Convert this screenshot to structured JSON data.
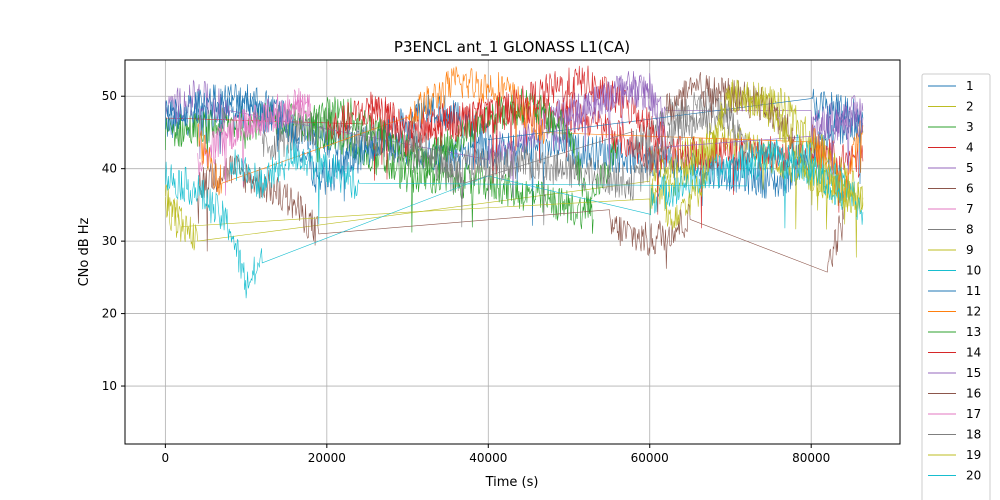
{
  "chart_data": {
    "type": "line",
    "title": "P3ENCL ant_1 GLONASS L1(CA)",
    "xlabel": "Time (s)",
    "ylabel": "CNo dB Hz",
    "xlim": [
      -5000,
      91000
    ],
    "ylim": [
      2,
      55
    ],
    "xticks": [
      0,
      20000,
      40000,
      60000,
      80000
    ],
    "yticks": [
      10,
      20,
      30,
      40,
      50
    ],
    "grid": true,
    "legend": "right-outside",
    "series": [
      {
        "name": "1",
        "color": "#1f77b4",
        "x": [
          0,
          10000,
          20000,
          35000,
          48000,
          62000,
          76000,
          84000,
          86400
        ],
        "y": [
          46,
          48,
          44,
          42,
          43,
          41,
          38,
          46,
          45
        ]
      },
      {
        "name": "2",
        "color": "#bcbd22",
        "x": [
          0,
          2000,
          4000,
          60000,
          70000,
          78000,
          86400
        ],
        "y": [
          36,
          33,
          30,
          40,
          44,
          40,
          35
        ]
      },
      {
        "name": "3",
        "color": "#2ca02c",
        "x": [
          0,
          15000,
          22000,
          30000,
          40000,
          52000,
          56000
        ],
        "y": [
          45,
          47,
          44,
          39,
          38,
          34,
          43
        ]
      },
      {
        "name": "4",
        "color": "#d62728",
        "x": [
          0,
          25000,
          30000,
          45000,
          52000,
          60000,
          70000,
          80000,
          86400
        ],
        "y": [
          47,
          48,
          46,
          48,
          47,
          42,
          42,
          42,
          41
        ]
      },
      {
        "name": "5",
        "color": "#9467bd",
        "x": [
          0,
          4000,
          8000,
          40000,
          50000,
          58000,
          62000,
          80000,
          86400
        ],
        "y": [
          48,
          50,
          48,
          42,
          48,
          51,
          48,
          46,
          48
        ]
      },
      {
        "name": "6",
        "color": "#8c564b",
        "x": [
          4000,
          8000,
          12000,
          16000,
          19000,
          55000,
          60000,
          65000,
          82000,
          84000
        ],
        "y": [
          38,
          40,
          38,
          35,
          31,
          32,
          30,
          33,
          27,
          33
        ]
      },
      {
        "name": "7",
        "color": "#e377c2",
        "x": [
          4000,
          8000,
          12000,
          18000
        ],
        "y": [
          41,
          45,
          47,
          48
        ]
      },
      {
        "name": "8",
        "color": "#7f7f7f",
        "x": [
          12000,
          20000,
          33000,
          37000,
          58000,
          62000,
          68000,
          72000
        ],
        "y": [
          43,
          46,
          41,
          38,
          43,
          47,
          49,
          44
        ]
      },
      {
        "name": "9",
        "color": "#bcbd22",
        "x": [
          0,
          2000,
          30000,
          60000,
          66000,
          70000,
          76000,
          80000,
          86400
        ],
        "y": [
          35,
          32,
          34,
          36,
          41,
          50,
          49,
          44,
          36
        ]
      },
      {
        "name": "10",
        "color": "#17becf",
        "x": [
          0,
          4000,
          8000,
          10000,
          12000,
          40000,
          60000,
          74000,
          80000,
          84000,
          86400
        ],
        "y": [
          39,
          37,
          32,
          24,
          27,
          39,
          36,
          42,
          40,
          38,
          34
        ]
      },
      {
        "name": "11",
        "color": "#1f77b4",
        "x": [
          0,
          5000,
          10000,
          15000,
          19000,
          28000,
          33000,
          40000,
          80000,
          86400
        ],
        "y": [
          47,
          49,
          50,
          47,
          38,
          45,
          49,
          44,
          49,
          47
        ]
      },
      {
        "name": "12",
        "color": "#ff7f0e",
        "x": [
          4000,
          7000,
          30000,
          36000,
          42000,
          47000,
          80000,
          84000,
          86400
        ],
        "y": [
          44,
          38,
          47,
          52,
          51,
          45,
          44,
          37,
          46
        ]
      },
      {
        "name": "13",
        "color": "#2ca02c",
        "x": [
          18000,
          22000,
          28000,
          32000,
          40000,
          45000,
          50000,
          53000
        ],
        "y": [
          47,
          48,
          44,
          41,
          47,
          49,
          45,
          33
        ]
      },
      {
        "name": "14",
        "color": "#d62728",
        "x": [
          20000,
          26000,
          30000,
          44000,
          48000,
          52000,
          58000,
          62000
        ],
        "y": [
          45,
          49,
          44,
          49,
          51,
          52,
          48,
          44
        ]
      },
      {
        "name": "15",
        "color": "#9467bd",
        "x": [
          48000,
          52000,
          56000,
          60000,
          62000,
          80000,
          86400
        ],
        "y": [
          44,
          48,
          51,
          51,
          43,
          45,
          47
        ]
      },
      {
        "name": "16",
        "color": "#8c564b",
        "x": [
          62000,
          66000,
          70000,
          74000,
          78000
        ],
        "y": [
          48,
          51,
          50,
          49,
          44
        ]
      },
      {
        "name": "17",
        "color": "#e377c2",
        "x": [
          6000,
          10000,
          14000,
          18000
        ],
        "y": [
          43,
          46,
          48,
          49
        ]
      },
      {
        "name": "18",
        "color": "#7f7f7f",
        "x": [
          30000,
          36000,
          44000,
          58000,
          64000,
          70000
        ],
        "y": [
          44,
          40,
          41,
          38,
          46,
          48
        ]
      },
      {
        "name": "19",
        "color": "#bcbd22",
        "x": [
          62000,
          66000,
          70000,
          74000,
          80000,
          86400
        ],
        "y": [
          33,
          37,
          50,
          49,
          40,
          35
        ]
      },
      {
        "name": "20",
        "color": "#17becf",
        "x": [
          8000,
          12000,
          16000,
          20000,
          24000,
          72000,
          78000,
          84000
        ],
        "y": [
          41,
          38,
          42,
          40,
          38,
          40,
          43,
          36
        ]
      }
    ]
  }
}
